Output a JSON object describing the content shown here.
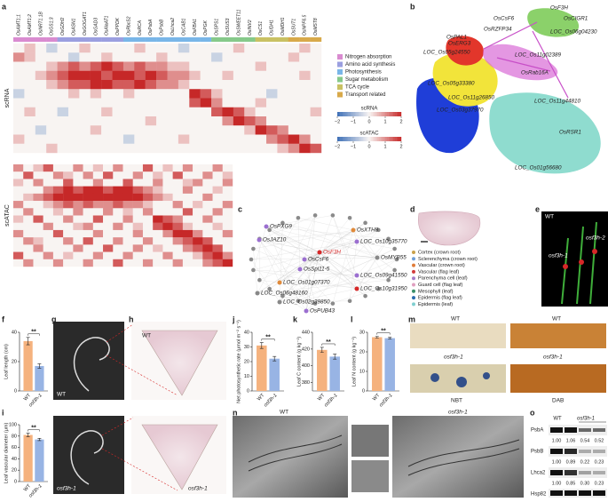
{
  "panel_letters": [
    "a",
    "b",
    "c",
    "d",
    "e",
    "f",
    "g",
    "h",
    "i",
    "j",
    "k",
    "l",
    "m",
    "n",
    "o"
  ],
  "functional_groups": [
    {
      "name": "Nitrogen absorption",
      "color": "#d98bd0",
      "genes": [
        "OsAMT1;1",
        "OsAMT1;2",
        "OsNRT1.1B",
        "OsGS1;3"
      ]
    },
    {
      "name": "Amino acid synthesis",
      "color": "#9b9fe0",
      "genes": [
        "OsGDH2",
        "OsASN1",
        "OsGOGAT1",
        "OsGAD3",
        "OsAlaAT1",
        "OsPPDK"
      ]
    },
    {
      "name": "Photosynthesis",
      "color": "#79b6e8",
      "genes": [
        "OsRbcS2",
        "OsRCA",
        "OsPsbA",
        "OsPsbB",
        "OsLhca2",
        "OsCAB1",
        "OsFBA1",
        "OsPGK"
      ]
    },
    {
      "name": "Sugar metabolism",
      "color": "#86c98a",
      "genes": [
        "OsSPS1",
        "OsSUS3",
        "OsSWEET11",
        "OsINV2"
      ]
    },
    {
      "name": "TCA cycle",
      "color": "#c9c163",
      "genes": [
        "OsCS1",
        "OsIDH1",
        "OsMDH1"
      ]
    },
    {
      "name": "Transport related",
      "color": "#d8a94a",
      "genes": [
        "OsSUT1",
        "OsNPF6.5",
        "OsMST8"
      ]
    }
  ],
  "colorbars": [
    {
      "name": "scRNA",
      "ticks": [
        {
          "value": -2,
          "label": "−2"
        },
        {
          "value": -1,
          "label": "−1"
        },
        0,
        1,
        2
      ]
    },
    {
      "name": "scATAC",
      "ticks": [
        {
          "value": -2,
          "label": "−2"
        },
        {
          "value": -1,
          "label": "−1"
        },
        0,
        1,
        2
      ]
    }
  ],
  "chart_data": [
    {
      "type": "heatmap",
      "name": "scRNA",
      "clim": [
        -2,
        2
      ],
      "values": [
        [
          0,
          0.5,
          0,
          -0.5,
          0,
          0,
          0.5,
          0,
          0,
          0,
          0,
          0.5,
          0,
          0,
          0,
          -0.5,
          0,
          0,
          0,
          0,
          0.5,
          0,
          0,
          0,
          0,
          0,
          0.5,
          0
        ],
        [
          1,
          0.5,
          0,
          0,
          0,
          -0.5,
          0,
          0,
          0.5,
          0,
          0,
          0,
          0,
          0.5,
          0,
          0,
          0,
          0,
          -0.5,
          0,
          0,
          0,
          0,
          0,
          0,
          0.5,
          0,
          0
        ],
        [
          0,
          0,
          0,
          0.5,
          1,
          1.5,
          1,
          1.5,
          2,
          1.5,
          1,
          1.5,
          1,
          1,
          0.5,
          0.5,
          0,
          0,
          0,
          0,
          0,
          0,
          0.5,
          0,
          0,
          0,
          0,
          0
        ],
        [
          0,
          0,
          0.5,
          1,
          1.5,
          2,
          2,
          2,
          1.5,
          2,
          2,
          1.5,
          2,
          1.5,
          1,
          1,
          0.5,
          0,
          0,
          0.5,
          0,
          0,
          0,
          0,
          0,
          0,
          0.5,
          0
        ],
        [
          0,
          0,
          0,
          0.5,
          1,
          1.5,
          1.5,
          2,
          2,
          1.5,
          1.5,
          2,
          1.5,
          1,
          1,
          0.5,
          0,
          0,
          0,
          0,
          0,
          0,
          0,
          0,
          0,
          0,
          0,
          0
        ],
        [
          -0.5,
          0,
          0,
          0,
          0,
          0.5,
          0,
          0.5,
          0,
          0,
          0.5,
          0,
          0,
          0,
          0,
          0,
          2,
          1.5,
          0.5,
          0,
          0,
          0,
          0,
          -0.5,
          0,
          0,
          0,
          0
        ],
        [
          0,
          0,
          0,
          0,
          0,
          0,
          0,
          0,
          0,
          0,
          0,
          0,
          0,
          0,
          0,
          0,
          1.5,
          2,
          1,
          0,
          0,
          0,
          0.5,
          0,
          0,
          0,
          0,
          0
        ],
        [
          0,
          0.5,
          0,
          0,
          -0.5,
          0,
          0,
          0,
          0.5,
          0,
          0,
          0,
          0,
          0,
          0,
          0,
          0,
          0,
          1.5,
          2,
          1.5,
          0.5,
          0,
          0,
          0,
          0,
          0,
          0.5
        ],
        [
          0,
          0,
          0,
          0,
          0,
          0,
          0,
          0,
          0,
          0,
          0,
          0,
          0.5,
          0,
          0,
          0,
          0,
          0,
          0,
          1,
          2,
          1.5,
          1,
          0,
          0,
          0,
          0,
          0
        ],
        [
          0,
          0,
          -0.5,
          0,
          0,
          0,
          0,
          0.5,
          0,
          0,
          0,
          0,
          0,
          0,
          0,
          0,
          0,
          0,
          0,
          0,
          0,
          0.5,
          2,
          1.5,
          1,
          0,
          0,
          0
        ],
        [
          0.5,
          0,
          0,
          0,
          0,
          0,
          0,
          0,
          0,
          0,
          -0.5,
          0,
          0,
          0,
          0,
          0.5,
          0,
          0,
          0,
          0,
          0,
          0,
          0,
          1,
          1.5,
          2,
          1,
          0
        ],
        [
          0,
          0,
          0,
          0.5,
          0,
          0,
          0,
          0,
          0,
          0,
          0,
          0,
          0,
          0,
          0,
          0,
          0,
          0,
          0,
          0,
          0,
          0,
          0,
          0,
          0.5,
          1,
          2,
          1.5
        ]
      ]
    },
    {
      "type": "heatmap",
      "name": "scATAC",
      "clim": [
        -2,
        2
      ],
      "values": [
        [
          1,
          0,
          0.5,
          1.5,
          0,
          0,
          1,
          0,
          0.5,
          0,
          1,
          0,
          0,
          1.5,
          0,
          0.5,
          0,
          1,
          0,
          0,
          1,
          0
        ],
        [
          0,
          1.5,
          0,
          0,
          1,
          0.5,
          0,
          1,
          0,
          1.5,
          0,
          0,
          1,
          0,
          0.5,
          0,
          1.5,
          0,
          0,
          1,
          0,
          0.5
        ],
        [
          0.5,
          0,
          1,
          0,
          0,
          1.5,
          0,
          0,
          1,
          0,
          0,
          1.5,
          0,
          0,
          1,
          0,
          0,
          0.5,
          1,
          0,
          0,
          1
        ],
        [
          0,
          0,
          0,
          1,
          1.5,
          2,
          1.5,
          2,
          2,
          1.5,
          2,
          2,
          1.5,
          1,
          0.5,
          0,
          0,
          1,
          0,
          0,
          0.5,
          0
        ],
        [
          0,
          0.5,
          1,
          1.5,
          2,
          2,
          2,
          2,
          2,
          2,
          2,
          2,
          2,
          1.5,
          1,
          0.5,
          0,
          0,
          0,
          1,
          0,
          0
        ],
        [
          1,
          0,
          0,
          0.5,
          1,
          1.5,
          1,
          1.5,
          1,
          1,
          1.5,
          1,
          1,
          0.5,
          0,
          0,
          1,
          0,
          0.5,
          0,
          0,
          1
        ],
        [
          0,
          1,
          0,
          0,
          0.5,
          0,
          1,
          0,
          0,
          1,
          0,
          0.5,
          0,
          1,
          0,
          0,
          0,
          1.5,
          0,
          0,
          1,
          0
        ],
        [
          0.5,
          0,
          1.5,
          0,
          0,
          1,
          0,
          0,
          1.5,
          0,
          0,
          1,
          0,
          0,
          2,
          1.5,
          1,
          0,
          0,
          1,
          0,
          0
        ],
        [
          0,
          0,
          0,
          1,
          0,
          0,
          0.5,
          1,
          0,
          0,
          1,
          0,
          0.5,
          0,
          1.5,
          2,
          1.5,
          0.5,
          0,
          0,
          0.5,
          0
        ],
        [
          1,
          0,
          0,
          0,
          1.5,
          0,
          0,
          0,
          1,
          0,
          0,
          0,
          1,
          0,
          0,
          1,
          2,
          2,
          1,
          0,
          0,
          1
        ],
        [
          0,
          1,
          0.5,
          0,
          0,
          1,
          0,
          1.5,
          0,
          0,
          1,
          0,
          0,
          1,
          0,
          0,
          1,
          1.5,
          2,
          1.5,
          0,
          0
        ],
        [
          0,
          0,
          1,
          0,
          0,
          0,
          1,
          0,
          0,
          1.5,
          0,
          0,
          1,
          0,
          0.5,
          0,
          0,
          1,
          1.5,
          2,
          1.5,
          0
        ],
        [
          1.5,
          0,
          0,
          1,
          0,
          0.5,
          0,
          0,
          1,
          0,
          0,
          1,
          0,
          0,
          0,
          1,
          0,
          0,
          0.5,
          1.5,
          2,
          1
        ],
        [
          0,
          1,
          0,
          0,
          1,
          0,
          0,
          1,
          0,
          0,
          1.5,
          0,
          0,
          1,
          0,
          0,
          1,
          0,
          0,
          1,
          1.5,
          2
        ]
      ]
    },
    {
      "type": "bar",
      "panel": "f",
      "y_label": "Leaf length (cm)",
      "categories": [
        "WT",
        "osf3h-1"
      ],
      "values": [
        34,
        17
      ],
      "errors": [
        2.5,
        1.5
      ],
      "colors": [
        "#f5b27e",
        "#98b4e4"
      ],
      "ylim": [
        0,
        40
      ],
      "yticks": [
        0,
        20,
        40
      ],
      "significance": "**"
    },
    {
      "type": "bar",
      "panel": "i",
      "y_label": "Leaf vascular diameter (μm)",
      "categories": [
        "WT",
        "osf3h-1"
      ],
      "values": [
        82,
        74
      ],
      "errors": [
        3,
        2
      ],
      "colors": [
        "#f5b27e",
        "#98b4e4"
      ],
      "ylim": [
        0,
        100
      ],
      "yticks": [
        0,
        20,
        40,
        60,
        80,
        100
      ],
      "significance": "**"
    },
    {
      "type": "bar",
      "panel": "j",
      "y_label": "Net photosynthetic rate (μmol m⁻² s⁻¹)",
      "categories": [
        "WT",
        "osf3h-1"
      ],
      "values": [
        31,
        22
      ],
      "errors": [
        2,
        1.5
      ],
      "colors": [
        "#f5b27e",
        "#98b4e4"
      ],
      "ylim": [
        0,
        40
      ],
      "yticks": [
        0,
        10,
        20,
        30,
        40
      ],
      "significance": "**"
    },
    {
      "type": "bar",
      "panel": "k",
      "y_label": "Leaf C content (g kg⁻¹)",
      "categories": [
        "WT",
        "osf3h-1"
      ],
      "values": [
        419,
        411
      ],
      "errors": [
        3,
        3
      ],
      "colors": [
        "#f5b27e",
        "#98b4e4"
      ],
      "ylim": [
        370,
        440
      ],
      "yticks": [
        380,
        400,
        420,
        440
      ],
      "significance": "**"
    },
    {
      "type": "bar",
      "panel": "l",
      "y_label": "Leaf N content (g kg⁻¹)",
      "categories": [
        "WT",
        "osf3h-1"
      ],
      "values": [
        27.5,
        27
      ],
      "errors": [
        0.4,
        0.4
      ],
      "colors": [
        "#f5b27e",
        "#98b4e4"
      ],
      "ylim": [
        0,
        30
      ],
      "yticks": [
        0,
        10,
        20,
        30
      ],
      "significance": "**"
    }
  ],
  "trajectory_labels": [
    "OsF3H",
    "OsCsF6",
    "OsCIGR1",
    "OsRZFP34",
    "LOC_Os06g04230",
    "OsPAL1",
    "OsERG3",
    "LOC_Os05g24550",
    "LOC_Os11g02389",
    "OsRab16A",
    "LOC_Os05g33380",
    "LOC_Os11g26850",
    "LOC_Os03g37970",
    "LOC_Os11g44810",
    "OsRSR1",
    "LOC_Os01g56680"
  ],
  "network_nodes": [
    {
      "label": "OsPXG9",
      "color": "#9b6fd0"
    },
    {
      "label": "OsJAZ10",
      "color": "#9b6fd0"
    },
    {
      "label": "OsXTH8",
      "color": "#e08a3a"
    },
    {
      "label": "LOC_Os10g35770",
      "color": "#9b6fd0"
    },
    {
      "label": "OsF3H",
      "color": "#d62828"
    },
    {
      "label": "OsCsF6",
      "color": "#9b6fd0"
    },
    {
      "label": "OsSpl11-5",
      "color": "#9b6fd0"
    },
    {
      "label": "OsMYB55",
      "color": "#888888"
    },
    {
      "label": "LOC_Os09g41550",
      "color": "#9b6fd0"
    },
    {
      "label": "LOC_Os01g07370",
      "color": "#e08a3a"
    },
    {
      "label": "LOC_Os06g48160",
      "color": "#888888"
    },
    {
      "label": "LOC_Os02g39850",
      "color": "#888888"
    },
    {
      "label": "LOC_Os10g31950",
      "color": "#d62828"
    },
    {
      "label": "OsPUB43",
      "color": "#9b6fd0"
    }
  ],
  "cell_types": [
    {
      "name": "Cortex (crown root)",
      "color": "#c9a14a"
    },
    {
      "name": "Sclerenchyma (crown root)",
      "color": "#6f9fd8"
    },
    {
      "name": "Vascular (crown root)",
      "color": "#e07b39"
    },
    {
      "name": "Vascular (flag leaf)",
      "color": "#d23c3c"
    },
    {
      "name": "Parenchyma cell (leaf)",
      "color": "#a57cc9"
    },
    {
      "name": "Guard cell (flag leaf)",
      "color": "#e0a0c0"
    },
    {
      "name": "Mesophyll (leaf)",
      "color": "#3a8f6a"
    },
    {
      "name": "Epidermis (flag leaf)",
      "color": "#2b6cb0"
    },
    {
      "name": "Epidermis (leaf)",
      "color": "#7fcfd0"
    }
  ],
  "image_labels": {
    "e": [
      "WT",
      "osf3h-1",
      "osf3h-2"
    ],
    "g": [
      "WT",
      "osf3h-1"
    ],
    "h": [
      "WT",
      "osf3h-1"
    ],
    "m": [
      "WT",
      "WT",
      "osf3h-1",
      "osf3h-1",
      "NBT",
      "DAB"
    ],
    "n": [
      "WT",
      "osf3h-1"
    ]
  },
  "blot": {
    "groups": [
      "WT",
      "osf3h-1"
    ],
    "rows": [
      {
        "protein": "PsbA",
        "quant": [
          "1.00",
          "1.06",
          "0.54",
          "0.52"
        ]
      },
      {
        "protein": "PsbB",
        "quant": [
          "1.00",
          "0.89",
          "0.22",
          "0.23"
        ]
      },
      {
        "protein": "Lhca2",
        "quant": [
          "1.00",
          "0.85",
          "0.30",
          "0.23"
        ]
      },
      {
        "protein": "Hsp82"
      }
    ]
  }
}
